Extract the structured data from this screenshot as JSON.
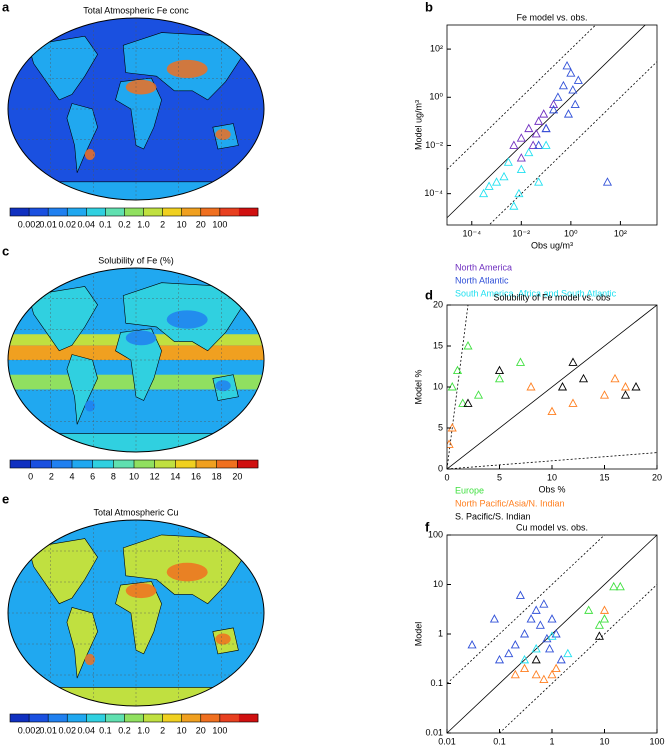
{
  "chart_data": [
    {
      "type": "map",
      "panel_label": "a",
      "title": "Total Atmospheric Fe conc",
      "colorbar_colors": [
        "#1030c0",
        "#1a50e0",
        "#2080f0",
        "#20a8f0",
        "#30d0e0",
        "#60e0b0",
        "#90e060",
        "#c0e040",
        "#f0d020",
        "#f0a020",
        "#f07020",
        "#e84020",
        "#d01010"
      ],
      "colorbar_ticks": [
        0.002,
        0.01,
        0.02,
        0.04,
        0.1,
        0.2,
        {
          "value": 1,
          "label": "1.0"
        },
        2,
        10,
        20,
        100
      ]
    },
    {
      "type": "scatter",
      "panel_label": "b",
      "title": "Fe model vs. obs.",
      "xlabel": "Obs  ug/m³",
      "ylabel": "Model  ug/m³",
      "log": true,
      "xlim": [
        1e-05,
        3000
      ],
      "ylim": [
        5e-06,
        1000
      ],
      "xticks": [
        {
          "value": 0.0001,
          "label": "10⁻⁴"
        },
        {
          "value": 0.01,
          "label": "10⁻²"
        },
        {
          "value": 1,
          "label": "10⁰"
        },
        {
          "value": 100,
          "label": "10²"
        }
      ],
      "yticks": [
        {
          "value": 0.0001,
          "label": "10⁻⁴"
        },
        {
          "value": 0.01,
          "label": "10⁻²"
        },
        {
          "value": 1,
          "label": "10⁰"
        },
        {
          "value": 100,
          "label": "10²"
        }
      ],
      "series": [
        {
          "name": "North America",
          "color": "#7030c0",
          "x": [
            0.005,
            0.01,
            0.02,
            0.03,
            0.05,
            0.08,
            0.1,
            0.2,
            0.01,
            0.04
          ],
          "values": [
            0.01,
            0.02,
            0.05,
            0.01,
            0.1,
            0.2,
            0.05,
            0.5,
            0.003,
            0.03
          ]
        },
        {
          "name": "North Atlantic",
          "color": "#3050d8",
          "x": [
            0.3,
            0.5,
            1,
            2,
            1.5,
            0.8,
            0.2,
            0.1,
            30,
            0.05,
            0.7,
            1.2
          ],
          "values": [
            1,
            3,
            10,
            5,
            0.5,
            0.2,
            0.3,
            0.05,
            0.0003,
            0.01,
            20,
            2
          ]
        },
        {
          "name": "South America, Africa and South Atlantic",
          "color": "#20e0f0",
          "x": [
            0.0003,
            0.001,
            0.002,
            0.005,
            0.01,
            0.02,
            0.003,
            0.0005,
            0.05,
            0.1,
            0.008
          ],
          "values": [
            0.0001,
            0.0003,
            0.0005,
            3e-05,
            0.001,
            0.005,
            0.002,
            0.0002,
            0.0003,
            0.01,
            0.0001
          ]
        }
      ]
    },
    {
      "type": "map",
      "panel_label": "c",
      "title": "Solubility of Fe (%)",
      "colorbar_colors": [
        "#1030c0",
        "#1a50e0",
        "#2080f0",
        "#20a8f0",
        "#30d0e0",
        "#60e0b0",
        "#90e060",
        "#c0e040",
        "#f0d020",
        "#f0a020",
        "#f07020",
        "#d01010"
      ],
      "colorbar_ticks": [
        0,
        2,
        4,
        6,
        8,
        10,
        12,
        14,
        16,
        18,
        20
      ]
    },
    {
      "type": "scatter",
      "panel_label": "d",
      "title": "Solubility of Fe model vs. obs",
      "xlabel": "Obs %",
      "ylabel": "Model %",
      "log": false,
      "xlim": [
        0,
        20
      ],
      "ylim": [
        0,
        20
      ],
      "xticks": [
        0,
        5,
        10,
        15,
        20
      ],
      "yticks": [
        0,
        5,
        10,
        15,
        20
      ],
      "series": [
        {
          "name": "Europe",
          "color": "#40e040",
          "x": [
            0.5,
            1,
            1.5,
            2,
            3,
            5,
            7
          ],
          "values": [
            10,
            12,
            8,
            15,
            9,
            11,
            13
          ]
        },
        {
          "name": "North Pacific/Asia/N. Indian",
          "color": "#ff7f20",
          "x": [
            0.2,
            0.5,
            8,
            10,
            12,
            15,
            16,
            17
          ],
          "values": [
            3,
            5,
            10,
            7,
            8,
            9,
            11,
            10
          ]
        },
        {
          "name": "S. Pacific/S. Indian",
          "color": "#000000",
          "x": [
            2,
            5,
            11,
            12,
            13,
            17,
            18
          ],
          "values": [
            8,
            12,
            10,
            13,
            11,
            9,
            10
          ]
        }
      ]
    },
    {
      "type": "map",
      "panel_label": "e",
      "title": "Total Atmospheric Cu",
      "colorbar_colors": [
        "#1030c0",
        "#1a50e0",
        "#2080f0",
        "#20a8f0",
        "#30d0e0",
        "#60e0b0",
        "#90e060",
        "#c0e040",
        "#f0d020",
        "#f0a020",
        "#f07020",
        "#e84020",
        "#d01010"
      ],
      "colorbar_ticks": [
        0.002,
        0.01,
        0.02,
        0.04,
        0.1,
        0.2,
        {
          "value": 1,
          "label": "1.0"
        },
        2,
        10,
        20,
        100
      ]
    },
    {
      "type": "scatter",
      "panel_label": "f",
      "title": "Cu model vs. obs.",
      "xlabel": "Obs",
      "ylabel": "Model",
      "log": true,
      "xlim": [
        0.01,
        100
      ],
      "ylim": [
        0.01,
        100
      ],
      "xticks": [
        0.01,
        0.1,
        1,
        10,
        100
      ],
      "yticks": [
        0.01,
        0.1,
        1,
        10,
        100
      ],
      "series": [
        {
          "color": "#3050d8",
          "x": [
            0.03,
            0.08,
            0.1,
            0.15,
            0.2,
            0.3,
            0.4,
            0.5,
            0.6,
            0.8,
            1,
            1.2,
            0.9,
            0.7,
            0.25,
            1.5
          ],
          "values": [
            0.6,
            2,
            0.3,
            0.4,
            0.6,
            1,
            2,
            3,
            1.5,
            0.8,
            2,
            1,
            0.5,
            4,
            6,
            0.3
          ]
        },
        {
          "color": "#40e040",
          "x": [
            5,
            10,
            15,
            20,
            8
          ],
          "values": [
            3,
            2,
            9,
            9,
            1.5
          ]
        },
        {
          "color": "#ff7f20",
          "x": [
            0.2,
            0.3,
            0.5,
            1,
            1.2,
            10,
            0.7
          ],
          "values": [
            0.15,
            0.2,
            0.15,
            0.15,
            0.2,
            3,
            0.12
          ]
        },
        {
          "color": "#20e0f0",
          "x": [
            0.5,
            1,
            2,
            0.3
          ],
          "values": [
            0.5,
            0.9,
            0.4,
            0.3
          ]
        },
        {
          "color": "#000000",
          "x": [
            8,
            0.5
          ],
          "values": [
            0.9,
            0.3
          ]
        }
      ]
    }
  ]
}
